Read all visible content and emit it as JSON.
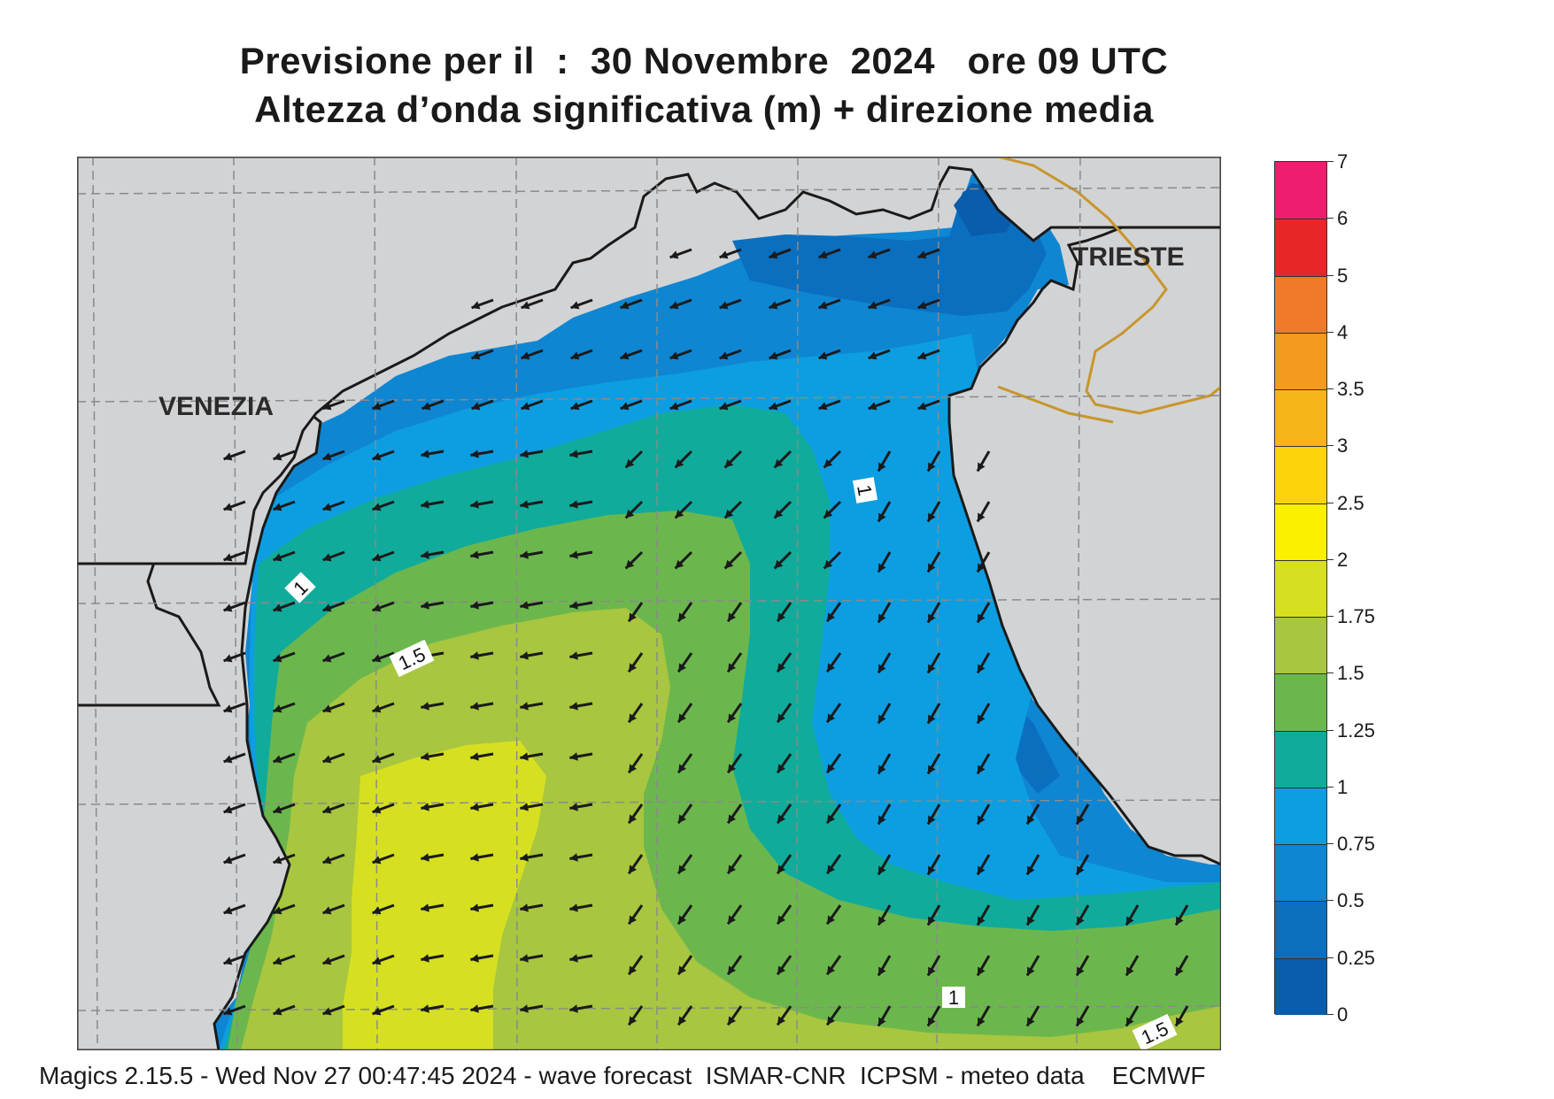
{
  "header": {
    "title_line1": "Previsione per il  :  30 Novembre  2024   ore 09 UTC",
    "title_line2": "Altezza d’onda significativa (m) + direzione media"
  },
  "map": {
    "cities": [
      {
        "name": "VENEZIA"
      },
      {
        "name": "TRIESTE"
      }
    ],
    "contour_labels": [
      "1",
      "1",
      "1.5",
      "1",
      "1.5"
    ],
    "colors": {
      "land": "#d2d3d5",
      "coast": "#1a1a1a",
      "border": "#c8962b",
      "grid": "#8a8a8a",
      "arrows": "#1a1a1a"
    },
    "mean_wave_direction": "towards south-west"
  },
  "colorbar": {
    "labels": [
      "7",
      "6",
      "5",
      "4",
      "3.5",
      "3",
      "2.5",
      "2",
      "1.75",
      "1.5",
      "1.25",
      "1",
      "0.75",
      "0.5",
      "0.25",
      "0"
    ],
    "colors_top_to_bottom": [
      "#ee1d6e",
      "#e8262a",
      "#f07a28",
      "#f49a1f",
      "#f7b51a",
      "#fdd40c",
      "#fbf000",
      "#d6e021",
      "#a8c63f",
      "#6cb74d",
      "#11ab9c",
      "#0d9ee2",
      "#0f86d2",
      "#0b6fbf",
      "#0a5cac"
    ]
  },
  "footer": {
    "text": "Magics 2.15.5 - Wed Nov 27 00:47:45 2024 - wave forecast  ISMAR-CNR  ICPSM - meteo data    ECMWF"
  }
}
